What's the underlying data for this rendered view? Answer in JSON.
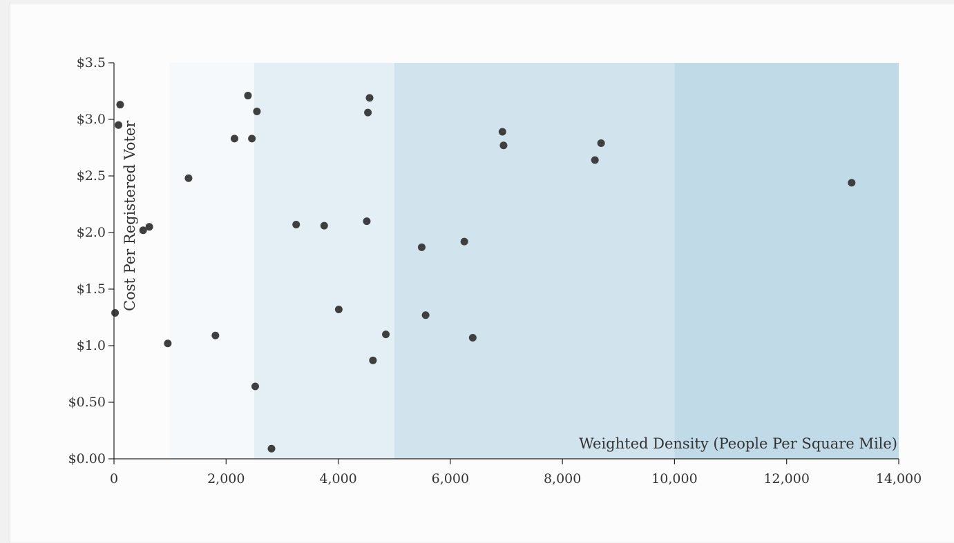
{
  "chart_data": {
    "type": "scatter",
    "xlabel": "Weighted Density (People Per Square Mile)",
    "ylabel": "Cost Per Registered Voter",
    "xlim": [
      0,
      14000
    ],
    "ylim": [
      0,
      3.5
    ],
    "x_ticks": [
      {
        "value": 0,
        "label": "0"
      },
      {
        "value": 2000,
        "label": "2,000"
      },
      {
        "value": 4000,
        "label": "4,000"
      },
      {
        "value": 6000,
        "label": "6,000"
      },
      {
        "value": 8000,
        "label": "8,000"
      },
      {
        "value": 10000,
        "label": "10,000"
      },
      {
        "value": 12000,
        "label": "12,000"
      },
      {
        "value": 14000,
        "label": "14,000"
      }
    ],
    "y_ticks": [
      {
        "value": 0,
        "label": "$0.00"
      },
      {
        "value": 0.5,
        "label": "$0.50"
      },
      {
        "value": 1.0,
        "label": "$1.0"
      },
      {
        "value": 1.5,
        "label": "$1.5"
      },
      {
        "value": 2.0,
        "label": "$2.0"
      },
      {
        "value": 2.5,
        "label": "$2.5"
      },
      {
        "value": 3.0,
        "label": "$3.0"
      },
      {
        "value": 3.5,
        "label": "$3.5"
      }
    ],
    "background_bands": [
      {
        "x0": 1000,
        "x1": 2500,
        "color": "#f5f9fc"
      },
      {
        "x0": 2500,
        "x1": 5000,
        "color": "#e3eff5"
      },
      {
        "x0": 5000,
        "x1": 10000,
        "color": "#d1e4ee"
      },
      {
        "x0": 10000,
        "x1": 14000,
        "color": "#c0dae7"
      }
    ],
    "grid": false,
    "point_color": "#3f3f3f",
    "points": [
      {
        "x": 110,
        "y": 3.13
      },
      {
        "x": 80,
        "y": 2.95
      },
      {
        "x": 20,
        "y": 1.29
      },
      {
        "x": 520,
        "y": 2.02
      },
      {
        "x": 630,
        "y": 2.05
      },
      {
        "x": 960,
        "y": 1.02
      },
      {
        "x": 1330,
        "y": 2.48
      },
      {
        "x": 1810,
        "y": 1.09
      },
      {
        "x": 2150,
        "y": 2.83
      },
      {
        "x": 2390,
        "y": 3.21
      },
      {
        "x": 2460,
        "y": 2.83
      },
      {
        "x": 2550,
        "y": 3.07
      },
      {
        "x": 2520,
        "y": 0.64
      },
      {
        "x": 2810,
        "y": 0.09
      },
      {
        "x": 3250,
        "y": 2.07
      },
      {
        "x": 3750,
        "y": 2.06
      },
      {
        "x": 4010,
        "y": 1.32
      },
      {
        "x": 4510,
        "y": 2.1
      },
      {
        "x": 4530,
        "y": 3.06
      },
      {
        "x": 4560,
        "y": 3.19
      },
      {
        "x": 4620,
        "y": 0.87
      },
      {
        "x": 4850,
        "y": 1.1
      },
      {
        "x": 5490,
        "y": 1.87
      },
      {
        "x": 5560,
        "y": 1.27
      },
      {
        "x": 6250,
        "y": 1.92
      },
      {
        "x": 6400,
        "y": 1.07
      },
      {
        "x": 6930,
        "y": 2.89
      },
      {
        "x": 6950,
        "y": 2.77
      },
      {
        "x": 8580,
        "y": 2.64
      },
      {
        "x": 8690,
        "y": 2.79
      },
      {
        "x": 13160,
        "y": 2.44
      }
    ]
  }
}
